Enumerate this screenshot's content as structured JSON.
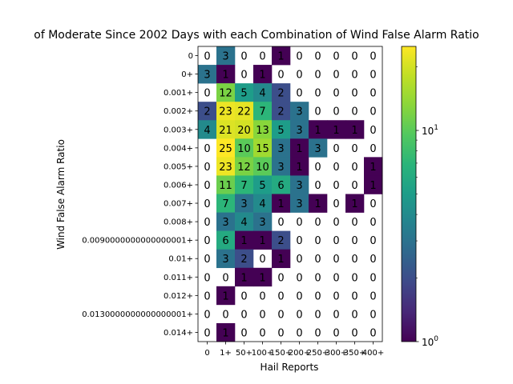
{
  "chart_data": {
    "type": "heatmap",
    "title": "of Moderate Since 2002 Days with each Combination of Wind False Alarm Ratio",
    "xlabel": "Hail Reports",
    "ylabel": "Wind False Alarm Ratio",
    "x_categories": [
      "0",
      "1+",
      "50+",
      "100+",
      "150+",
      "200+",
      "250+",
      "300+",
      "350+",
      "400+"
    ],
    "y_categories": [
      "0",
      "0+",
      "0.001+",
      "0.002+",
      "0.003+",
      "0.004+",
      "0.005+",
      "0.006+",
      "0.007+",
      "0.008+",
      "0.0090000000000000001+",
      "0.01+",
      "0.011+",
      "0.012+",
      "0.0130000000000000001+",
      "0.014+"
    ],
    "values": [
      [
        0,
        3,
        0,
        0,
        1,
        0,
        0,
        0,
        0,
        0
      ],
      [
        3,
        1,
        0,
        1,
        0,
        0,
        0,
        0,
        0,
        0
      ],
      [
        0,
        12,
        5,
        4,
        2,
        0,
        0,
        0,
        0,
        0
      ],
      [
        2,
        23,
        22,
        7,
        2,
        3,
        0,
        0,
        0,
        0
      ],
      [
        4,
        21,
        20,
        13,
        5,
        3,
        1,
        1,
        1,
        0
      ],
      [
        0,
        25,
        10,
        15,
        3,
        1,
        3,
        0,
        0,
        0
      ],
      [
        0,
        23,
        12,
        10,
        3,
        1,
        0,
        0,
        0,
        1
      ],
      [
        0,
        11,
        7,
        5,
        6,
        3,
        0,
        0,
        0,
        1
      ],
      [
        0,
        7,
        3,
        4,
        1,
        3,
        1,
        0,
        1,
        0
      ],
      [
        0,
        3,
        4,
        3,
        0,
        0,
        0,
        0,
        0,
        0
      ],
      [
        0,
        6,
        1,
        1,
        2,
        0,
        0,
        0,
        0,
        0
      ],
      [
        0,
        3,
        2,
        0,
        1,
        0,
        0,
        0,
        0,
        0
      ],
      [
        0,
        0,
        1,
        1,
        0,
        0,
        0,
        0,
        0,
        0
      ],
      [
        0,
        1,
        0,
        0,
        0,
        0,
        0,
        0,
        0,
        0
      ],
      [
        0,
        0,
        0,
        0,
        0,
        0,
        0,
        0,
        0,
        0
      ],
      [
        0,
        1,
        0,
        0,
        0,
        0,
        0,
        0,
        0,
        0
      ]
    ],
    "colorscale": "viridis",
    "color_scale_type": "log",
    "color_range": [
      1,
      25
    ],
    "colorbar_ticks": [
      {
        "value": 1,
        "label": "10",
        "exponent": "0"
      },
      {
        "value": 10,
        "label": "10",
        "exponent": "1"
      }
    ],
    "zero_cells": "white (not colored)",
    "grid": false,
    "legend": "colorbar right"
  }
}
